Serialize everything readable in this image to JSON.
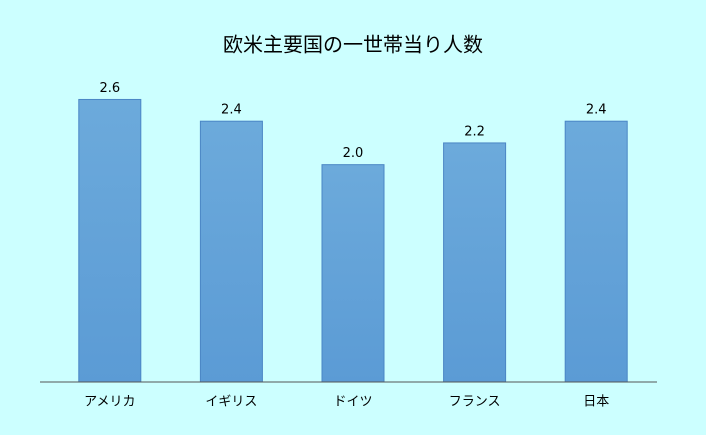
{
  "chart_data": {
    "type": "bar",
    "title": "欧米主要国の一世帯当り人数",
    "categories": [
      "アメリカ",
      "イギリス",
      "ドイツ",
      "フランス",
      "日本"
    ],
    "values": [
      2.6,
      2.4,
      2.0,
      2.2,
      2.4
    ],
    "value_labels": [
      "2.6",
      "2.4",
      "2.0",
      "2.2",
      "2.4"
    ],
    "color": "#5b9bd5",
    "ylim": [
      0,
      3
    ]
  }
}
